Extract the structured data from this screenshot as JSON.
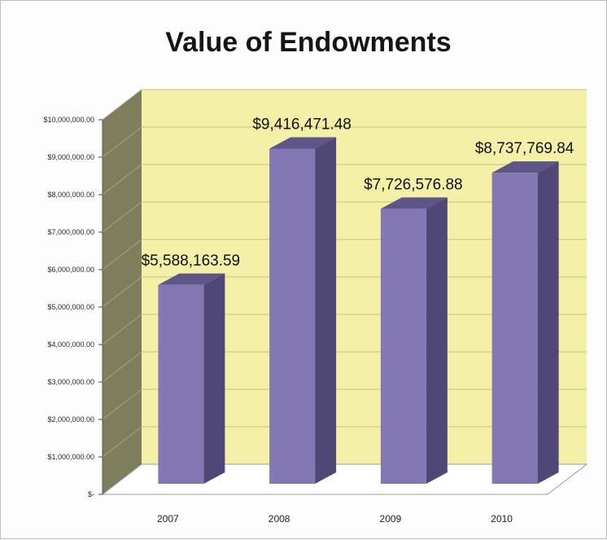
{
  "chart_data": {
    "type": "bar",
    "title": "Value of Endowments",
    "categories": [
      "2007",
      "2008",
      "2009",
      "2010"
    ],
    "values": [
      5588163.59,
      9416471.48,
      7726576.88,
      8737769.84
    ],
    "data_labels": [
      "$5,588,163.59",
      "$9,416,471.48",
      "$7,726,576.88",
      "$8,737,769.84"
    ],
    "y_tick_values": [
      0,
      1000000,
      2000000,
      3000000,
      4000000,
      5000000,
      6000000,
      7000000,
      8000000,
      9000000,
      10000000
    ],
    "y_tick_labels": [
      "$-",
      "$1,000,000.00",
      "$2,000,000.00",
      "$3,000,000.00",
      "$4,000,000.00",
      "$5,000,000.00",
      "$6,000,000.00",
      "$7,000,000.00",
      "$8,000,000.00",
      "$9,000,000.00",
      "$10,000,000.00"
    ],
    "ylim": [
      0,
      10000000
    ],
    "xlabel": "",
    "ylabel": "",
    "grid": true,
    "three_d": true,
    "colors": {
      "bar_front": "#8478b4",
      "bar_side": "#4f4775",
      "bar_top": "#5e5588",
      "back_wall": "#f4f0a8",
      "side_wall": "#7e7e5c",
      "floor": "#ffffff",
      "grid": "#cfcc8c"
    }
  }
}
